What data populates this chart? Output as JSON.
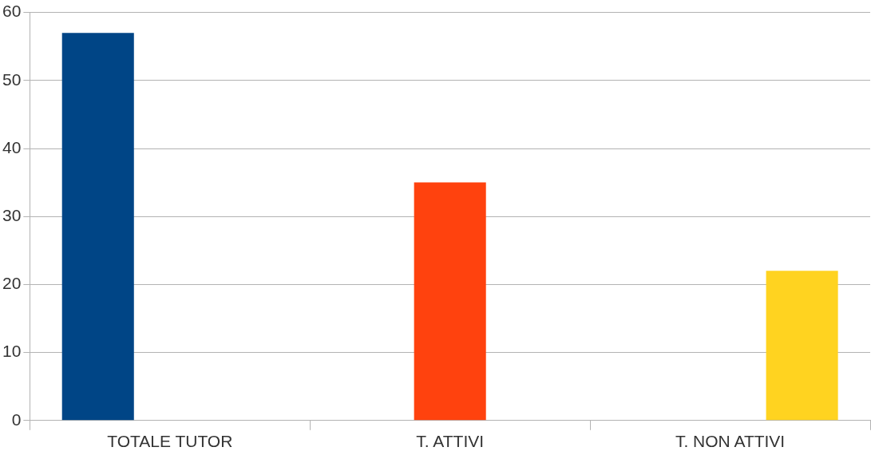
{
  "chart_data": {
    "type": "bar",
    "categories": [
      "TOTALE TUTOR",
      "T. ATTIVI",
      "T. NON ATTIVI"
    ],
    "series": [
      {
        "color": "#004586",
        "values": [
          57,
          null,
          null
        ]
      },
      {
        "color": "#ff420e",
        "values": [
          null,
          35,
          null
        ]
      },
      {
        "color": "#ffd320",
        "values": [
          null,
          null,
          22
        ]
      }
    ],
    "ylim": [
      0,
      60
    ],
    "yticks": [
      0,
      10,
      20,
      30,
      40,
      50,
      60
    ],
    "grid": "y",
    "legend": false
  }
}
